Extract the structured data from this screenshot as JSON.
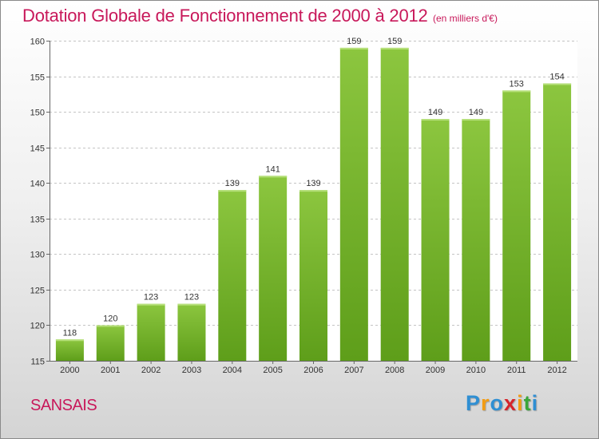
{
  "chart_data": {
    "type": "bar",
    "title": "Dotation Globale de Fonctionnement de 2000 à 2012",
    "subtitle": "(en milliers d'€)",
    "categories": [
      "2000",
      "2001",
      "2002",
      "2003",
      "2004",
      "2005",
      "2006",
      "2007",
      "2008",
      "2009",
      "2010",
      "2011",
      "2012"
    ],
    "values": [
      118,
      120,
      123,
      123,
      139,
      141,
      139,
      159,
      159,
      149,
      149,
      153,
      154
    ],
    "ylim": [
      115,
      160
    ],
    "yticks": [
      115,
      120,
      125,
      130,
      135,
      140,
      145,
      150,
      155,
      160
    ],
    "grid": true,
    "bar_color": "#8cc63f",
    "bar_color_dark": "#5e9e1a"
  },
  "commune": "SANSAIS",
  "logo": {
    "letters": [
      "P",
      "r",
      "o",
      "x",
      "i",
      "t",
      "i"
    ],
    "colors": [
      "#2f8fd3",
      "#f39c12",
      "#2f8fd3",
      "#d6242b",
      "#f39c12",
      "#3aa63a",
      "#2f8fd3"
    ]
  }
}
